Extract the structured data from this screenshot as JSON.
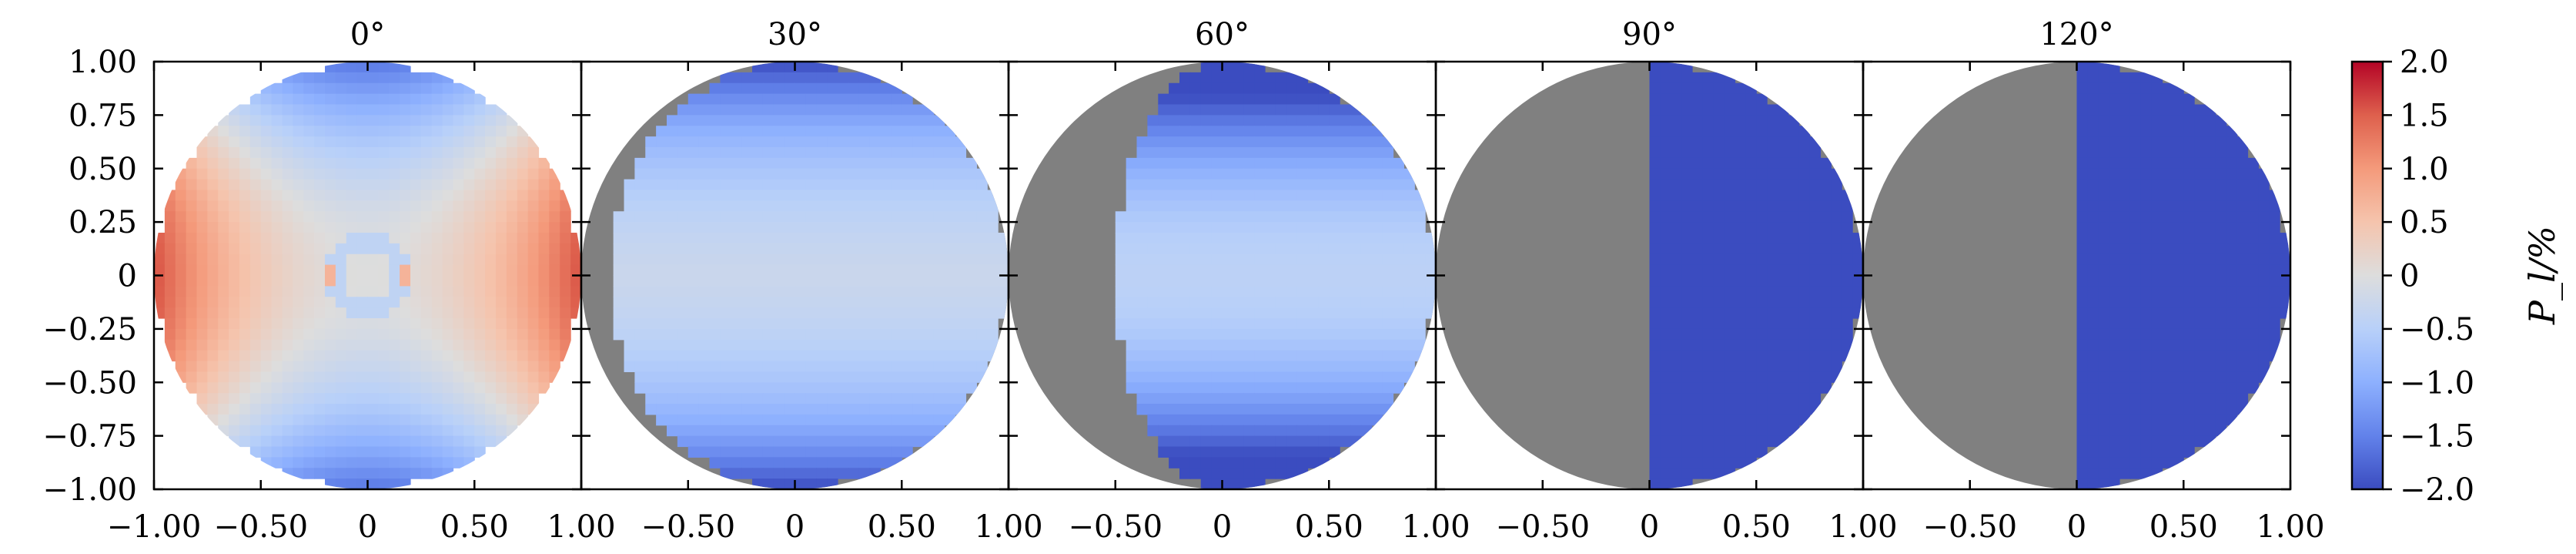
{
  "figure": {
    "colorbar_label": "P_l/%"
  },
  "chart_data": {
    "type": "heatmap",
    "panels": [
      {
        "title": "0°",
        "tilt_deg": 0
      },
      {
        "title": "30°",
        "tilt_deg": 30
      },
      {
        "title": "60°",
        "tilt_deg": 60
      },
      {
        "title": "90°",
        "tilt_deg": 90
      },
      {
        "title": "120°",
        "tilt_deg": 120
      }
    ],
    "x_range": [
      -1.0,
      1.0
    ],
    "y_range": [
      -1.0,
      1.0
    ],
    "y_ticks": [
      1.0,
      0.75,
      0.5,
      0.25,
      0,
      -0.25,
      -0.5,
      -0.75,
      -1.0
    ],
    "y_tick_labels": [
      "1.00",
      "0.75",
      "0.50",
      "0.25",
      "0",
      "−0.25",
      "−0.50",
      "−0.75",
      "−1.00"
    ],
    "x_ticks": [
      -1.0,
      -0.5,
      0,
      0.5,
      1.0
    ],
    "x_tick_labels_first": [
      "−1.00",
      "−0.50",
      "0",
      "0.50",
      "1.00"
    ],
    "x_tick_labels_rest": [
      "−0.50",
      "0",
      "0.50",
      "1.00"
    ],
    "colorbar": {
      "range": [
        -2.0,
        2.0
      ],
      "ticks": [
        2.0,
        1.5,
        1.0,
        0.5,
        0,
        -0.5,
        -1.0,
        -1.5,
        -2.0
      ],
      "tick_labels": [
        "2.0",
        "1.5",
        "1.0",
        "0.5",
        "0",
        "−0.5",
        "−1.0",
        "−1.5",
        "−2.0"
      ],
      "colormap": "coolwarm",
      "label": "P_l/%"
    },
    "occluded_color": "#808080",
    "grid": false
  }
}
